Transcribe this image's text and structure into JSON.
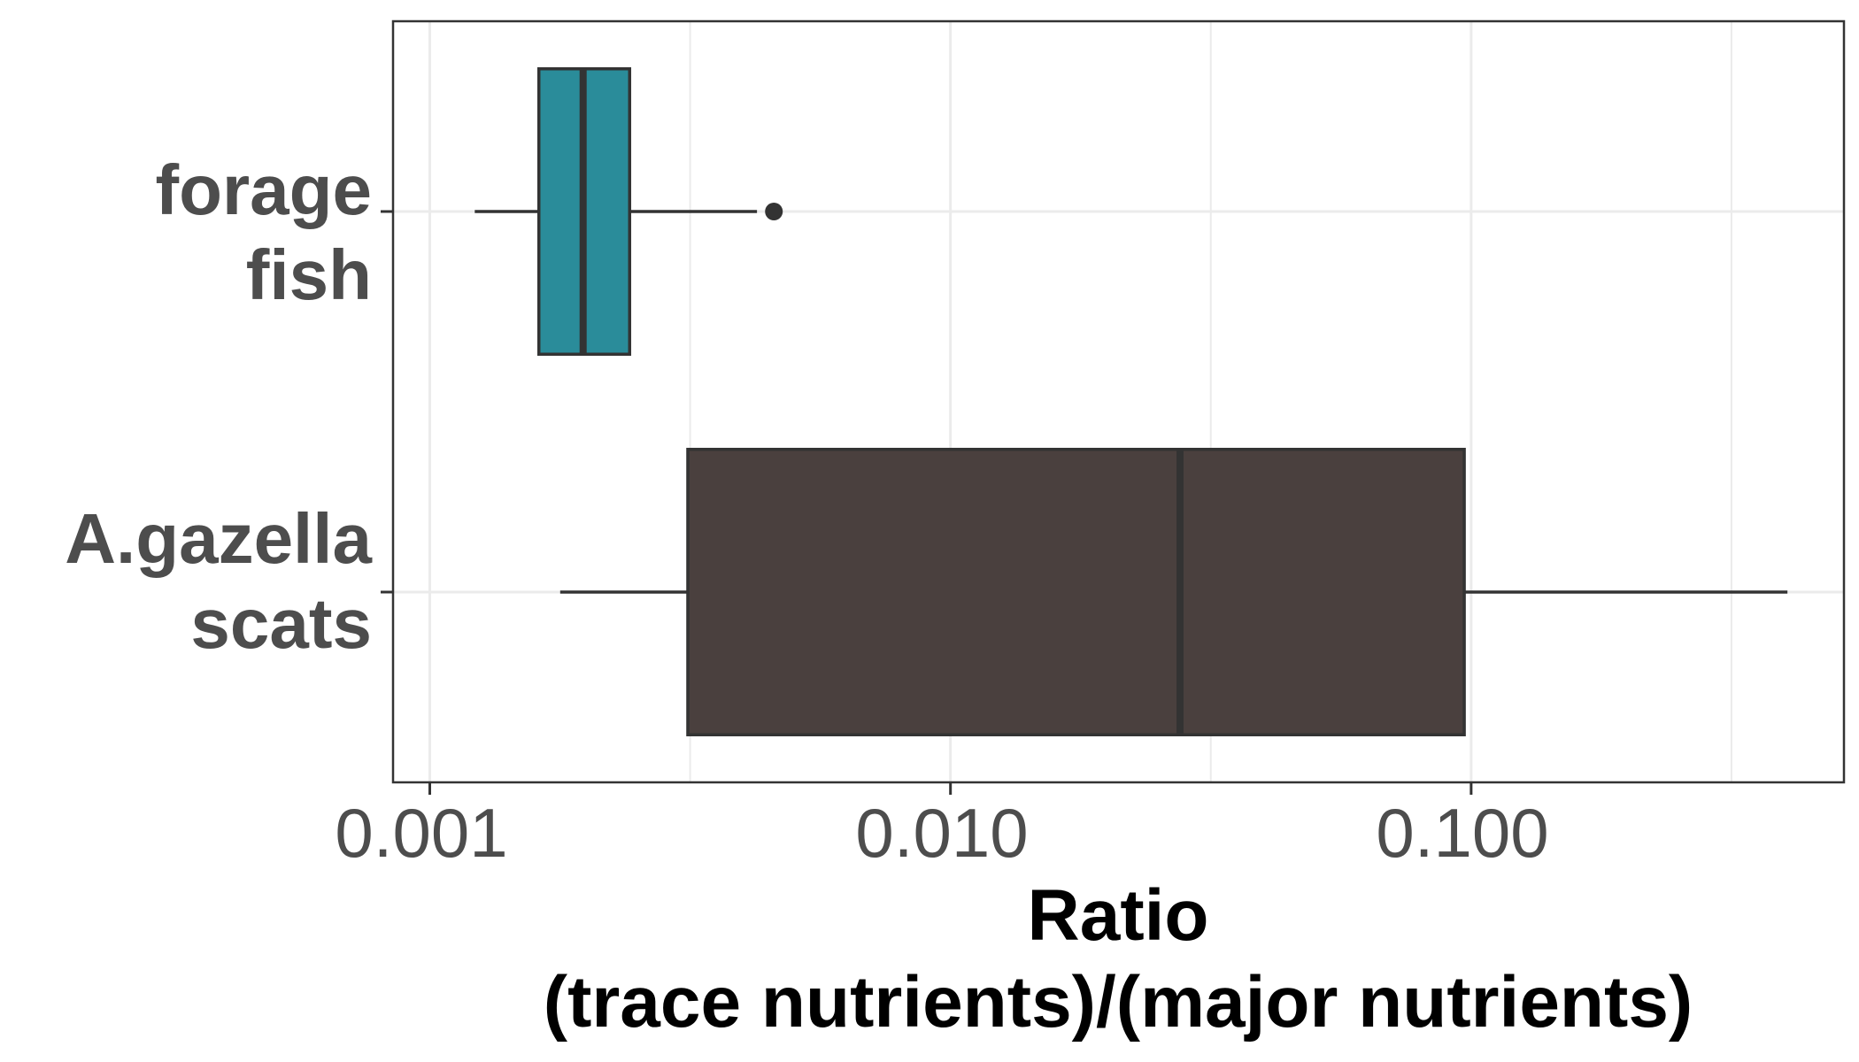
{
  "chart_data": {
    "type": "boxplot",
    "orientation": "horizontal",
    "x_scale": "log10",
    "xlim": [
      0.00085,
      0.52
    ],
    "x_ticks": [
      0.001,
      0.01,
      0.1
    ],
    "x_tick_labels": [
      "0.001",
      "0.010",
      "0.100"
    ],
    "xlabel_line1": "Ratio",
    "xlabel_line2": "(trace nutrients)/(major nutrients)",
    "ylabel": "",
    "grid": true,
    "legend": "none",
    "series": [
      {
        "category_line1": "forage",
        "category_line2": "fish",
        "color": "#2a8c9a",
        "whisker_low": 0.00122,
        "q1": 0.00162,
        "median": 0.00197,
        "q3": 0.00242,
        "whisker_high": 0.00425,
        "outliers": [
          0.00458
        ]
      },
      {
        "category_line1": "A.gazella",
        "category_line2": "scats",
        "color": "#4a403e",
        "whisker_low": 0.00178,
        "q1": 0.00313,
        "median": 0.0276,
        "q3": 0.097,
        "whisker_high": 0.405,
        "outliers": []
      }
    ]
  }
}
